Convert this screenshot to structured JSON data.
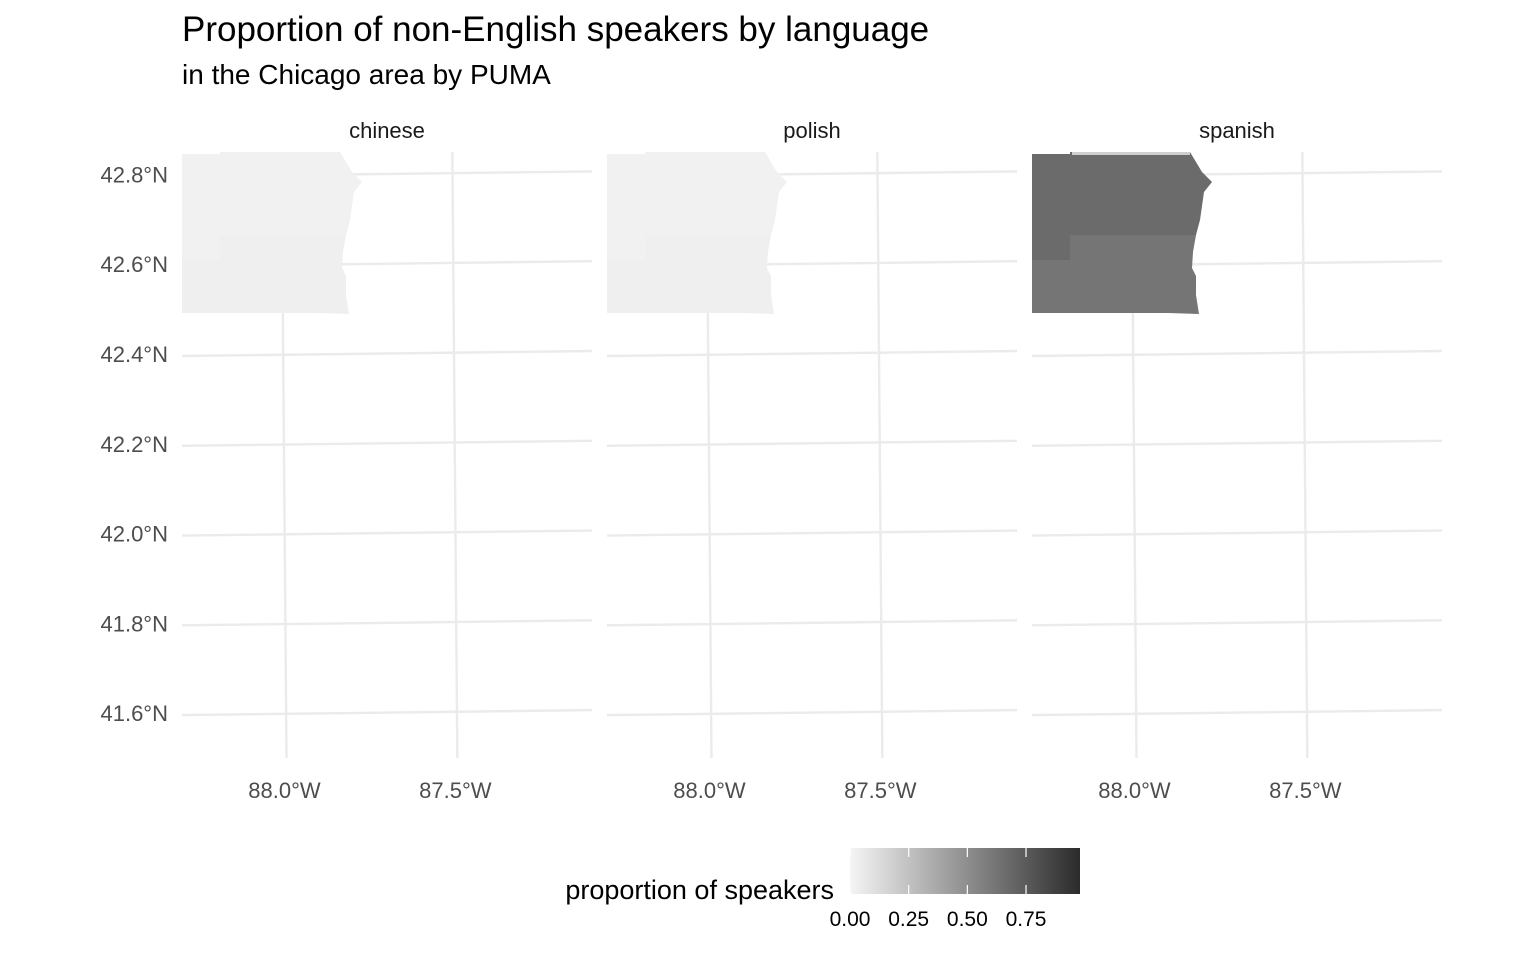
{
  "title": "Proportion of non-English speakers by language",
  "subtitle": "in the Chicago area by PUMA",
  "chart_data": {
    "type": "choropleth",
    "facets": [
      "chinese",
      "polish",
      "spanish"
    ],
    "y_ticks": [
      "42.8°N",
      "42.6°N",
      "42.4°N",
      "42.2°N",
      "42.0°N",
      "41.8°N",
      "41.6°N"
    ],
    "y_tick_values": [
      42.8,
      42.6,
      42.4,
      42.2,
      42.0,
      41.8,
      41.6
    ],
    "x_ticks": [
      "88.0°W",
      "87.5°W"
    ],
    "x_tick_values": [
      -88.0,
      -87.5
    ],
    "xlim": [
      -88.3,
      -87.1
    ],
    "ylim": [
      41.5,
      42.85
    ],
    "regions": [
      {
        "facet": "chinese",
        "region": "north",
        "value": 0.02
      },
      {
        "facet": "chinese",
        "region": "south",
        "value": 0.03
      },
      {
        "facet": "polish",
        "region": "north",
        "value": 0.02
      },
      {
        "facet": "polish",
        "region": "south",
        "value": 0.03
      },
      {
        "facet": "spanish",
        "region": "north",
        "value": 0.67
      },
      {
        "facet": "spanish",
        "region": "south",
        "value": 0.62
      }
    ],
    "legend": {
      "title": "proportion of speakers",
      "position": "bottom",
      "tick_labels": [
        "0.00",
        "0.25",
        "0.50",
        "0.75"
      ],
      "tick_values": [
        0,
        0.25,
        0.5,
        0.75
      ],
      "range": [
        0,
        0.98
      ],
      "colors": [
        "#f5f5f5",
        "#2b2b2b"
      ]
    },
    "grid": true
  }
}
